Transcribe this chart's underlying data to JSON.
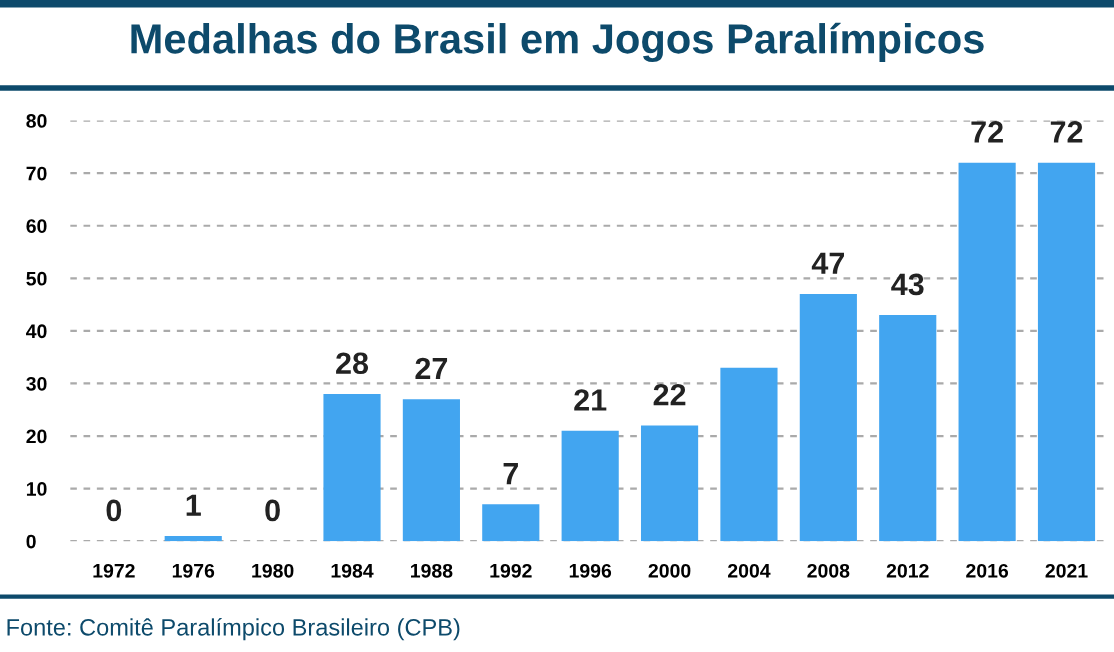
{
  "chart_data": {
    "type": "bar",
    "title": "Medalhas do Brasil em Jogos Paralímpicos",
    "categories": [
      "1972",
      "1976",
      "1980",
      "1984",
      "1988",
      "1992",
      "1996",
      "2000",
      "2004",
      "2008",
      "2012",
      "2016",
      "2021"
    ],
    "values": [
      0,
      1,
      0,
      28,
      27,
      7,
      21,
      22,
      33,
      47,
      43,
      72,
      72
    ],
    "value_labels": [
      "0",
      "1",
      "0",
      "28",
      "27",
      "7",
      "21",
      "22",
      null,
      "47",
      "43",
      "72",
      "72"
    ],
    "color": "#42a5f0",
    "ylim": [
      0,
      80
    ],
    "yticks": [
      0,
      10,
      20,
      30,
      40,
      50,
      60,
      70,
      80
    ],
    "grid": "y",
    "annotations": [
      "Fonte: Comitê Paralímpico Brasileiro (CPB)"
    ]
  }
}
